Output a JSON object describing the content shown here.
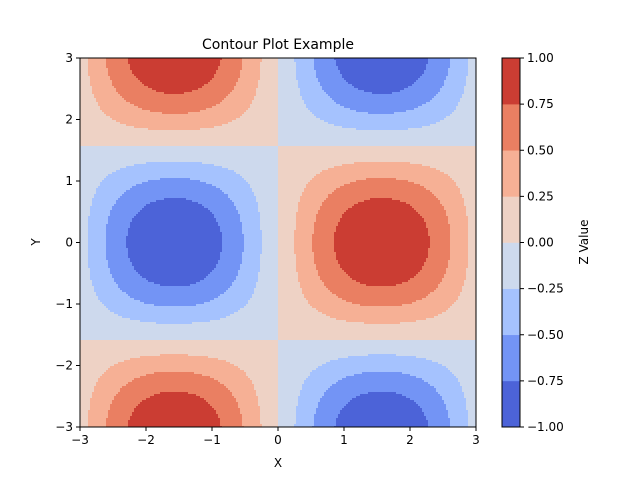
{
  "chart_data": {
    "type": "heatmap",
    "subtype": "filled-contour",
    "title": "Contour Plot Example",
    "xlabel": "X",
    "ylabel": "Y",
    "xlim": [
      -3,
      3
    ],
    "ylim": [
      -3,
      3
    ],
    "x_ticks": [
      -3,
      -2,
      -1,
      0,
      1,
      2,
      3
    ],
    "y_ticks": [
      -3,
      -2,
      -1,
      0,
      1,
      2,
      3
    ],
    "x_tick_labels": [
      "−3",
      "−2",
      "−1",
      "0",
      "1",
      "2",
      "3"
    ],
    "y_tick_labels": [
      "−3",
      "−2",
      "−1",
      "0",
      "1",
      "2",
      "3"
    ],
    "function": "z = sin(x) * cos(y)",
    "levels": [
      -1.0,
      -0.75,
      -0.5,
      -0.25,
      0.0,
      0.25,
      0.5,
      0.75,
      1.0
    ],
    "colors": [
      "#4c63d8",
      "#7394f5",
      "#a5c2fe",
      "#cdd9ed",
      "#eed2c5",
      "#f6b095",
      "#ea7f62",
      "#cb3d33"
    ],
    "grid": false,
    "colorbar": {
      "label": "Z Value",
      "ticks": [
        -1.0,
        -0.75,
        -0.5,
        -0.25,
        0.0,
        0.25,
        0.5,
        0.75,
        1.0
      ],
      "tick_labels": [
        "−1.00",
        "−0.75",
        "−0.50",
        "−0.25",
        "0.00",
        "0.25",
        "0.50",
        "0.75",
        "1.00"
      ],
      "placement": "right"
    }
  }
}
